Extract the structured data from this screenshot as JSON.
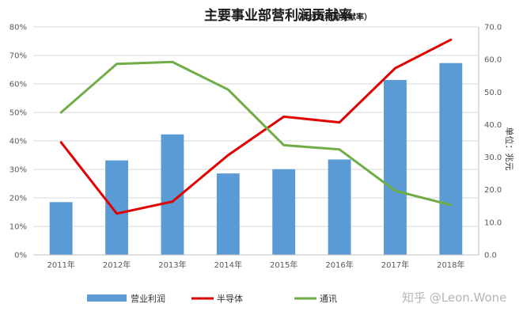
{
  "chart_data": {
    "type": "bar",
    "title": "主要事业部营利润贡献率",
    "subtitle": "（折线为利润贡献率）",
    "categories": [
      "2011年",
      "2012年",
      "2013年",
      "2014年",
      "2015年",
      "2016年",
      "2017年",
      "2018年"
    ],
    "series": [
      {
        "name": "营业利润",
        "type": "bar",
        "axis": "right",
        "color": "#5b9bd5",
        "values": [
          16.2,
          29.0,
          37.0,
          25.0,
          26.3,
          29.3,
          53.7,
          58.9
        ]
      },
      {
        "name": "半导体",
        "type": "line",
        "axis": "left",
        "color": "#e00000",
        "values": [
          0.395,
          0.145,
          0.187,
          0.35,
          0.485,
          0.465,
          0.655,
          0.755
        ]
      },
      {
        "name": "通讯",
        "type": "line",
        "axis": "left",
        "color": "#70ad47",
        "values": [
          0.5,
          0.67,
          0.677,
          0.58,
          0.385,
          0.37,
          0.225,
          0.175
        ]
      }
    ],
    "y_left": {
      "min": 0,
      "max": 0.8,
      "step": 0.1,
      "tick_labels": [
        "0%",
        "10%",
        "20%",
        "30%",
        "40%",
        "50%",
        "60%",
        "70%",
        "80%"
      ]
    },
    "y_right": {
      "min": 0,
      "max": 70,
      "step": 10,
      "tick_labels": [
        "0.0",
        "10.0",
        "20.0",
        "30.0",
        "40.0",
        "50.0",
        "60.0",
        "70.0"
      ],
      "label": "单位：兆元"
    },
    "grid": true,
    "legend_position": "bottom",
    "watermark": "知乎 @Leon.Wone"
  }
}
